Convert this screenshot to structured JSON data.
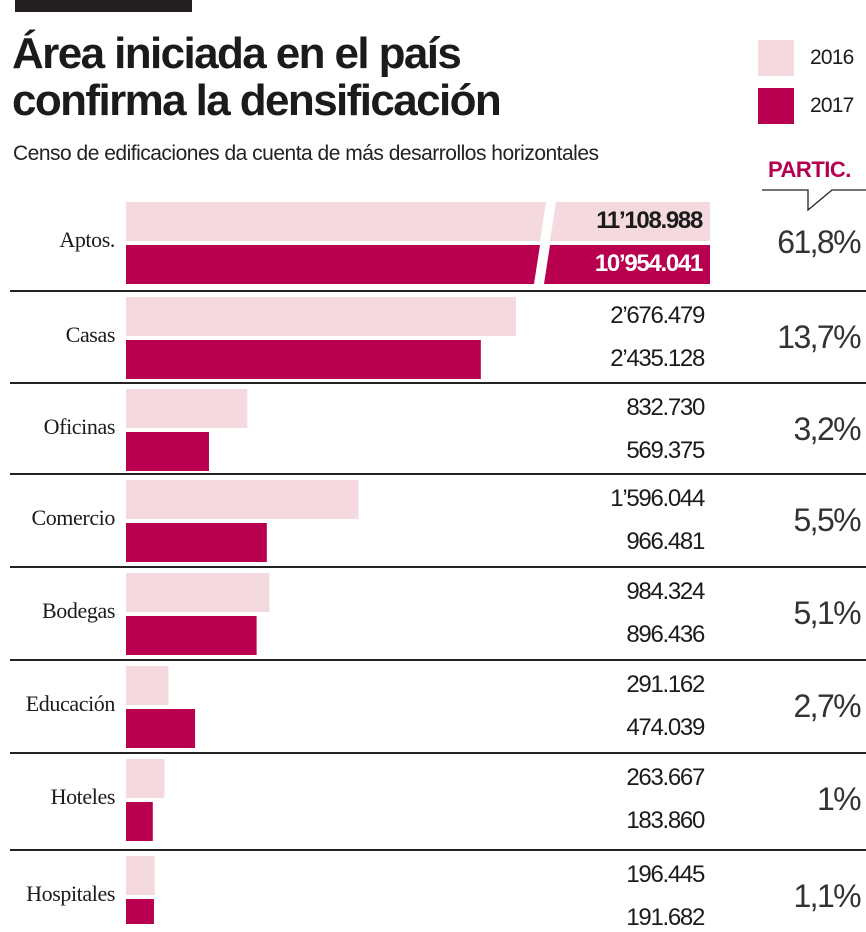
{
  "colors": {
    "y2016": "#f4d9de",
    "y2017": "#b8004f",
    "accent": "#b5004f",
    "rule": "#222222"
  },
  "header": {
    "title_line1": "Área iniciada en el país",
    "title_line2": "confirma la densificación",
    "subtitle": "Censo de edificaciones da cuenta de más desarrollos horizontales"
  },
  "partic_label": "PARTIC.",
  "chart_data": {
    "type": "bar",
    "orientation": "horizontal",
    "title": "Área iniciada en el país confirma la densificación",
    "subtitle": "Censo de edificaciones da cuenta de más desarrollos horizontales",
    "legend": [
      "2016",
      "2017"
    ],
    "legend_position": "top-right",
    "categories": [
      "Aptos.",
      "Casas",
      "Oficinas",
      "Comercio",
      "Bodegas",
      "Educación",
      "Hoteles",
      "Hospitales"
    ],
    "series": [
      {
        "name": "2016",
        "values": [
          11108988,
          2676479,
          832730,
          1596044,
          984324,
          291162,
          263667,
          196445
        ],
        "labels": [
          "11’108.988",
          "2’676.479",
          "832.730",
          "1’596.044",
          "984.324",
          "291.162",
          "263.667",
          "196.445"
        ]
      },
      {
        "name": "2017",
        "values": [
          10954041,
          2435128,
          569375,
          966481,
          896436,
          474039,
          183860,
          191682
        ],
        "labels": [
          "10’954.041",
          "2’435.128",
          "569.375",
          "966.481",
          "896.436",
          "474.039",
          "183.860",
          "191.682"
        ]
      }
    ],
    "participation_header": "PARTIC.",
    "participation": [
      "61,8%",
      "13,7%",
      "3,2%",
      "5,5%",
      "5,1%",
      "2,7%",
      "1%",
      "1,1%"
    ],
    "axis_break_on_first_category": true
  }
}
